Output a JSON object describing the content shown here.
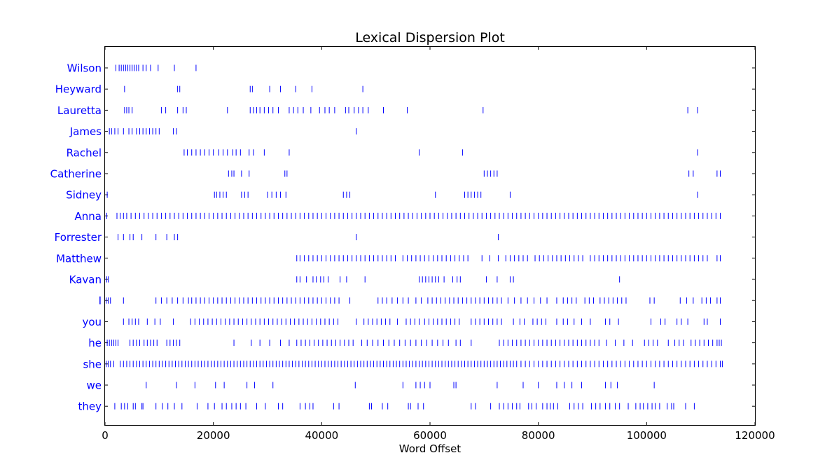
{
  "chart_data": {
    "type": "scatter",
    "title": "Lexical Dispersion Plot",
    "xlabel": "Word Offset",
    "ylabel": "",
    "xlim": [
      0,
      120000
    ],
    "xticks": [
      0,
      20000,
      40000,
      60000,
      80000,
      100000,
      120000
    ],
    "xtick_labels": [
      "0",
      "20000",
      "40000",
      "60000",
      "80000",
      "100000",
      "120000"
    ],
    "marker": "|",
    "colors": {
      "marks": "#0000ff",
      "labels": "#0000ff",
      "axes": "#000000"
    },
    "grid": false,
    "legend": "none",
    "words": [
      {
        "word": "Wilson",
        "offsets": [
          2000,
          2600,
          3000,
          3400,
          3800,
          4200,
          4600,
          5000,
          5400,
          5800,
          6200,
          7000,
          7600,
          8400,
          9800,
          12800,
          16800
        ]
      },
      {
        "word": "Heyward",
        "offsets": [
          3600,
          13400,
          13800,
          26800,
          27200,
          30400,
          32400,
          35200,
          38200,
          47600
        ]
      },
      {
        "word": "Lauretta",
        "offsets": [
          3600,
          4000,
          4400,
          5000,
          10400,
          11200,
          13400,
          14400,
          15000,
          22600,
          26800,
          27400,
          28000,
          28600,
          29400,
          30200,
          31000,
          32000,
          34000,
          34800,
          35600,
          36600,
          38000,
          39600,
          40600,
          41400,
          42400,
          44400,
          45000,
          46000,
          46800,
          47600,
          48600,
          51400,
          55800,
          69800,
          107600,
          109400
        ]
      },
      {
        "word": "James",
        "offsets": [
          800,
          1200,
          1800,
          2400,
          3400,
          4400,
          5000,
          5800,
          6400,
          7000,
          7600,
          8200,
          8800,
          9400,
          10000,
          12600,
          13200,
          46400
        ]
      },
      {
        "word": "Rachel",
        "offsets": [
          14600,
          15200,
          16000,
          16800,
          17600,
          18400,
          19200,
          20000,
          21000,
          21800,
          22600,
          23600,
          24200,
          25000,
          26600,
          27400,
          29400,
          34000,
          58000,
          66000,
          109400
        ]
      },
      {
        "word": "Catherine",
        "offsets": [
          22800,
          23400,
          23800,
          25200,
          26600,
          33200,
          33600,
          70000,
          70600,
          71200,
          71800,
          72400,
          107800,
          108600,
          113000,
          113600
        ]
      },
      {
        "word": "Sidney",
        "offsets": [
          400,
          20200,
          20600,
          21200,
          21800,
          22400,
          25200,
          25800,
          26400,
          30000,
          30800,
          31600,
          32400,
          33400,
          44000,
          44600,
          45200,
          61000,
          66400,
          67000,
          67600,
          68200,
          68800,
          69400,
          74800,
          109400
        ]
      },
      {
        "word": "Anna",
        "offsets": [
          300,
          2200,
          2800,
          3400,
          4000,
          4800,
          5600,
          6400,
          7200,
          8000,
          8800,
          9600,
          10400,
          11200,
          12000,
          12800,
          13600,
          14400,
          15200,
          16000,
          16800,
          17600,
          18400,
          19200,
          20000,
          20800,
          21600,
          22400,
          23200,
          24000,
          24800,
          25600,
          26400,
          27200,
          28000,
          28800,
          29600,
          30400,
          31200,
          32000,
          32800,
          33600,
          34400,
          35200,
          36000,
          36800,
          37600,
          38400,
          39200,
          40000,
          40800,
          41600,
          42400,
          43200,
          44000,
          44800,
          45600,
          46400,
          47200,
          48000,
          48800,
          49600,
          50400,
          51200,
          52000,
          52800,
          53600,
          54400,
          55200,
          56000,
          56800,
          57600,
          58400,
          59200,
          60000,
          60800,
          61600,
          62400,
          63200,
          64000,
          64800,
          65600,
          66400,
          67200,
          68000,
          68800,
          69600,
          70400,
          71200,
          72000,
          72800,
          73600,
          74400,
          75200,
          76000,
          76800,
          77600,
          78400,
          79200,
          80000,
          80800,
          81600,
          82400,
          83200,
          84000,
          84800,
          85600,
          86400,
          87200,
          88000,
          88800,
          89600,
          90400,
          91200,
          92000,
          92800,
          93600,
          94400,
          95200,
          96000,
          96800,
          97600,
          98400,
          99200,
          100000,
          100800,
          101600,
          102400,
          103200,
          104000,
          104800,
          105600,
          106400,
          107200,
          108000,
          108800,
          109600,
          110400,
          111200,
          112000,
          112800,
          113600
        ]
      },
      {
        "word": "Forrester",
        "offsets": [
          2400,
          3400,
          4600,
          5200,
          6800,
          9400,
          11400,
          12800,
          13400,
          46400,
          72600
        ]
      },
      {
        "word": "Matthew",
        "offsets": [
          35400,
          36000,
          36800,
          37600,
          38400,
          39200,
          40000,
          40800,
          41600,
          42400,
          43200,
          44000,
          44800,
          45600,
          46400,
          47200,
          48000,
          48800,
          49600,
          50400,
          51200,
          52000,
          52800,
          53600,
          55000,
          55800,
          56600,
          57400,
          58200,
          59000,
          59800,
          60600,
          61400,
          62200,
          63000,
          63800,
          64600,
          65400,
          66200,
          67000,
          69600,
          71000,
          72600,
          74000,
          74800,
          75600,
          76400,
          77200,
          78000,
          79400,
          80200,
          81000,
          81800,
          82600,
          83400,
          84200,
          85000,
          85800,
          86600,
          87400,
          88200,
          89600,
          90400,
          91200,
          92000,
          92800,
          93600,
          94400,
          95200,
          96000,
          96800,
          97600,
          98400,
          99200,
          100000,
          100800,
          101600,
          102400,
          103200,
          104000,
          104800,
          105600,
          106400,
          107200,
          108000,
          108800,
          109600,
          110400,
          111200,
          113000,
          113600
        ]
      },
      {
        "word": "Kavan",
        "offsets": [
          300,
          600,
          35400,
          36000,
          37200,
          38400,
          39000,
          39800,
          40400,
          41200,
          43400,
          44600,
          48000,
          58000,
          58600,
          59200,
          59800,
          60400,
          61000,
          61600,
          62600,
          64200,
          65000,
          65600,
          70400,
          72400,
          74800,
          75400,
          95000
        ]
      },
      {
        "word": "I",
        "offsets": [
          200,
          600,
          1000,
          3400,
          9400,
          10400,
          11400,
          12400,
          13400,
          14400,
          15400,
          16000,
          16800,
          17600,
          18400,
          19200,
          20000,
          20800,
          21600,
          22400,
          23200,
          24000,
          24800,
          25600,
          26400,
          27200,
          28000,
          28800,
          29600,
          30400,
          31200,
          32000,
          32800,
          33600,
          34400,
          35200,
          36000,
          36800,
          37600,
          38400,
          39200,
          40000,
          40800,
          41600,
          42400,
          43200,
          45200,
          50400,
          51200,
          52000,
          53000,
          54000,
          55000,
          56000,
          57400,
          58400,
          59600,
          60400,
          61200,
          62000,
          62800,
          63600,
          64400,
          65200,
          66000,
          66800,
          67600,
          68400,
          69200,
          70000,
          70800,
          71600,
          72400,
          73200,
          74400,
          75600,
          76800,
          78000,
          79200,
          80400,
          81600,
          83400,
          84600,
          85400,
          86200,
          87000,
          88600,
          89400,
          90200,
          91400,
          92200,
          93000,
          93800,
          94600,
          95400,
          96200,
          100600,
          101400,
          106200,
          107400,
          108600,
          110200,
          111000,
          111800,
          113000,
          113600
        ]
      },
      {
        "word": "you",
        "offsets": [
          3400,
          4400,
          5000,
          5600,
          6200,
          7800,
          9200,
          10200,
          12600,
          15800,
          16600,
          17400,
          18200,
          19000,
          19800,
          20600,
          21400,
          22200,
          23000,
          23800,
          24600,
          25400,
          26200,
          27000,
          27800,
          28600,
          29400,
          30200,
          31000,
          31800,
          32600,
          33400,
          34200,
          35000,
          35800,
          36600,
          37400,
          38200,
          39000,
          39800,
          40600,
          41400,
          42200,
          43000,
          46400,
          47800,
          48600,
          49400,
          50200,
          51000,
          51800,
          52600,
          54000,
          55600,
          56400,
          57200,
          58000,
          59000,
          59800,
          60600,
          61400,
          62200,
          63000,
          63800,
          64600,
          65400,
          67600,
          68400,
          69200,
          70000,
          70800,
          71600,
          72400,
          73200,
          75400,
          76600,
          77400,
          79000,
          79800,
          80600,
          81400,
          83400,
          84600,
          85400,
          86600,
          88000,
          89600,
          92400,
          93200,
          94800,
          100800,
          102600,
          103400,
          105600,
          106400,
          107600,
          110600,
          111200,
          113600
        ]
      },
      {
        "word": "he",
        "offsets": [
          400,
          800,
          1200,
          1600,
          2000,
          2400,
          4600,
          5200,
          5800,
          6400,
          7200,
          7800,
          8400,
          9000,
          9600,
          11400,
          12000,
          12600,
          13200,
          13800,
          23800,
          27000,
          28600,
          30400,
          32400,
          34000,
          35400,
          36200,
          37000,
          37800,
          38600,
          39400,
          40200,
          41000,
          41800,
          42600,
          43400,
          44200,
          45000,
          45800,
          47400,
          48400,
          49400,
          50400,
          51400,
          52400,
          53400,
          54400,
          55400,
          56400,
          57400,
          58400,
          59400,
          60400,
          61400,
          62400,
          63400,
          64800,
          65600,
          67600,
          72800,
          73600,
          74400,
          75200,
          76000,
          76800,
          77600,
          78400,
          79200,
          80000,
          80800,
          81600,
          82400,
          83200,
          84000,
          84800,
          85600,
          86400,
          87200,
          88000,
          88800,
          89600,
          90400,
          91200,
          92600,
          94200,
          95800,
          97400,
          99600,
          100400,
          101200,
          102000,
          104000,
          105200,
          106000,
          106800,
          108200,
          109000,
          109800,
          110600,
          111400,
          112200,
          113000,
          113400,
          113800
        ]
      },
      {
        "word": "she",
        "offsets": [
          200,
          600,
          1000,
          1600,
          2800,
          3400,
          4000,
          4600,
          5200,
          5800,
          6400,
          7000,
          7600,
          8200,
          8800,
          9400,
          10000,
          10600,
          11200,
          11800,
          12400,
          13000,
          13600,
          14200,
          14800,
          15400,
          16000,
          16600,
          17200,
          17800,
          18400,
          19000,
          19600,
          20200,
          20800,
          21400,
          22000,
          22600,
          23200,
          23800,
          24400,
          25000,
          25600,
          26200,
          26800,
          27400,
          28000,
          28600,
          29200,
          29800,
          30400,
          31000,
          31600,
          32200,
          32800,
          33400,
          34000,
          34600,
          35200,
          35800,
          36400,
          37000,
          37600,
          38200,
          38800,
          39400,
          40000,
          40600,
          41200,
          41800,
          42400,
          43000,
          43600,
          44200,
          44800,
          45400,
          46000,
          46600,
          47200,
          47800,
          48400,
          49000,
          49600,
          50200,
          50800,
          51400,
          52000,
          52600,
          53200,
          53800,
          54400,
          55000,
          55600,
          56200,
          56800,
          57400,
          58000,
          58600,
          59200,
          59800,
          60400,
          61000,
          61600,
          62200,
          62800,
          63400,
          64000,
          64600,
          65200,
          65800,
          66400,
          67000,
          67600,
          68200,
          68800,
          69400,
          70000,
          70600,
          71200,
          71800,
          72400,
          73000,
          73600,
          74200,
          74800,
          75400,
          76000,
          76800,
          77600,
          78400,
          79200,
          80000,
          80800,
          81600,
          82400,
          83200,
          84000,
          84800,
          85600,
          86400,
          87200,
          88000,
          88800,
          89600,
          90400,
          91200,
          92000,
          92800,
          93600,
          94400,
          95200,
          96000,
          96800,
          97600,
          98400,
          99200,
          100000,
          100800,
          101600,
          102400,
          103200,
          104000,
          104800,
          105600,
          106400,
          107200,
          108000,
          108800,
          109600,
          110400,
          111200,
          112000,
          112800,
          113600,
          114000
        ]
      },
      {
        "word": "we",
        "offsets": [
          7600,
          13200,
          16600,
          20400,
          22000,
          26200,
          27600,
          31000,
          46200,
          55000,
          57400,
          58200,
          59000,
          60000,
          64400,
          64800,
          72400,
          77200,
          80000,
          83400,
          84800,
          86200,
          88000,
          92400,
          93400,
          94600,
          101400
        ]
      },
      {
        "word": "they",
        "offsets": [
          1800,
          3000,
          3600,
          4200,
          5200,
          5600,
          6800,
          7000,
          9400,
          10600,
          11600,
          12800,
          14200,
          17000,
          19000,
          20200,
          21600,
          22400,
          23400,
          24200,
          25000,
          26000,
          28000,
          29600,
          32000,
          32800,
          36000,
          37000,
          37800,
          38400,
          42200,
          43200,
          48800,
          49200,
          51200,
          52200,
          56000,
          56400,
          57800,
          58800,
          67600,
          68400,
          71200,
          72800,
          73600,
          74400,
          75200,
          76000,
          76600,
          78200,
          78800,
          79600,
          80800,
          81600,
          82200,
          82800,
          83600,
          85800,
          86600,
          87400,
          88200,
          89800,
          90600,
          91400,
          92400,
          93200,
          94200,
          95000,
          96600,
          98000,
          98800,
          99400,
          100200,
          101000,
          101600,
          102400,
          103800,
          104600,
          105000,
          107200,
          108800
        ]
      }
    ]
  }
}
